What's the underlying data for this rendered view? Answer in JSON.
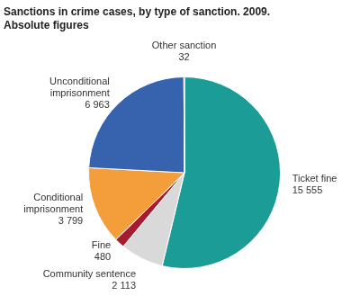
{
  "chart_data": {
    "type": "pie",
    "title": "Sanctions in crime cases, by type of sanction. 2009.",
    "subtitle": "Absolute figures",
    "categories": [
      "Ticket fine",
      "Community sentence",
      "Fine",
      "Conditional imprisonment",
      "Unconditional imprisonment",
      "Other sanction"
    ],
    "values": [
      15555,
      2113,
      480,
      3799,
      6963,
      32
    ],
    "value_labels": [
      "15 555",
      "2 113",
      "480",
      "3 799",
      "6 963",
      "32"
    ],
    "colors": [
      "#1c9c97",
      "#d9d9d9",
      "#a51b2f",
      "#f49d3b",
      "#3763ae",
      "#a51b2f"
    ],
    "data_labels": true
  }
}
